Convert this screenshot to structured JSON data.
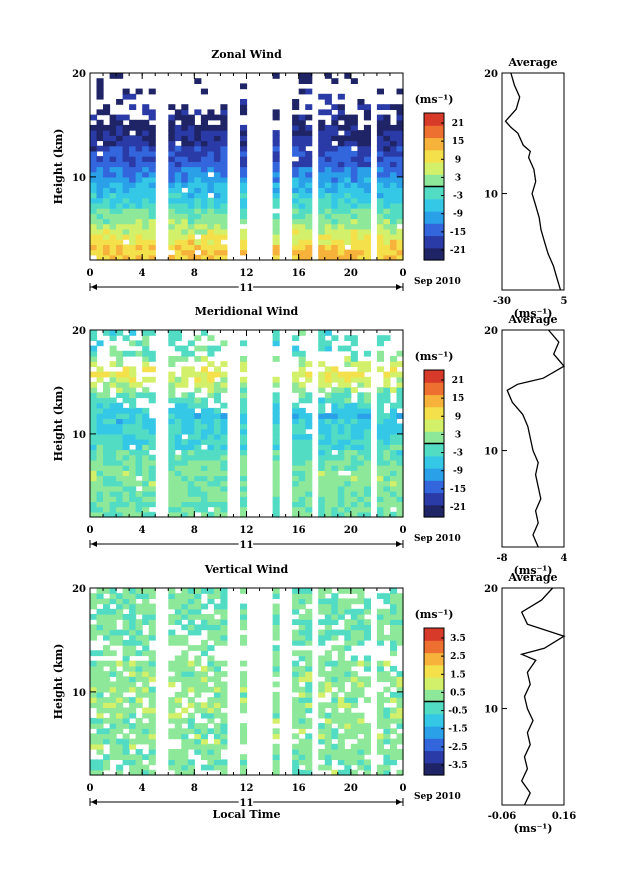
{
  "chart_data": [
    {
      "type": "heatmap",
      "title": "Zonal Wind",
      "ylabel": "Height (km)",
      "xticks": [
        "0",
        "4",
        "8",
        "12",
        "16",
        "20",
        "0"
      ],
      "yticks": [
        "20",
        "10"
      ],
      "ylim": [
        2,
        20
      ],
      "xlim": [
        0,
        24
      ],
      "day_label": "11",
      "date_label": "Sep 2010",
      "colorbar": {
        "unit": "(ms⁻¹)",
        "ticks": [
          "21",
          "15",
          "9",
          "3",
          "-3",
          "-9",
          "-15",
          "-21"
        ],
        "range": [
          -24,
          24
        ]
      },
      "profile": {
        "title": "Average",
        "unit": "(ms⁻¹)",
        "xticks": [
          "-30",
          "5"
        ],
        "xlim": [
          -30,
          5
        ],
        "yticks": [
          "20",
          "10"
        ],
        "heights": [
          2,
          3,
          4,
          5,
          6,
          7,
          8,
          9,
          10,
          11,
          12,
          13,
          13.5,
          14,
          15,
          15.5,
          16,
          17,
          18,
          19,
          20
        ],
        "values": [
          3,
          1,
          -1,
          -4,
          -6,
          -8,
          -9,
          -11,
          -13,
          -11,
          -12,
          -15,
          -14,
          -18,
          -21,
          -25,
          -28,
          -22,
          -20,
          -23,
          -25
        ]
      },
      "wind_samples": [
        {
          "height": 3,
          "value": 12
        },
        {
          "height": 5,
          "value": 5
        },
        {
          "height": 7,
          "value": -2
        },
        {
          "height": 9,
          "value": -8
        },
        {
          "height": 11,
          "value": -14
        },
        {
          "height": 13,
          "value": -18
        },
        {
          "height": 15,
          "value": -22
        },
        {
          "height": 17,
          "value": -20
        },
        {
          "height": 19,
          "value": -23
        }
      ]
    },
    {
      "type": "heatmap",
      "title": "Meridional Wind",
      "ylabel": "Height (km)",
      "xticks": [
        "0",
        "4",
        "8",
        "12",
        "16",
        "20",
        "0"
      ],
      "yticks": [
        "20",
        "10"
      ],
      "ylim": [
        2,
        20
      ],
      "xlim": [
        0,
        24
      ],
      "day_label": "11",
      "date_label": "Sep 2010",
      "colorbar": {
        "unit": "(ms⁻¹)",
        "ticks": [
          "21",
          "15",
          "9",
          "3",
          "-3",
          "-9",
          "-15",
          "-21"
        ],
        "range": [
          -24,
          24
        ]
      },
      "profile": {
        "title": "Average",
        "unit": "(ms⁻¹)",
        "xticks": [
          "-8",
          "4"
        ],
        "xlim": [
          -8,
          4
        ],
        "yticks": [
          "20",
          "10"
        ],
        "heights": [
          2,
          3,
          4,
          5,
          6,
          7,
          8,
          9,
          10,
          11,
          12,
          13,
          14,
          15,
          15.5,
          16,
          17,
          18,
          19,
          20
        ],
        "values": [
          -1,
          -2,
          -1,
          -1.5,
          -0.5,
          -1,
          -1.5,
          -1,
          -2,
          -2.5,
          -3,
          -4,
          -6,
          -7,
          -5,
          0,
          4,
          2,
          3,
          1
        ]
      },
      "wind_samples": [
        {
          "height": 3,
          "value": 0
        },
        {
          "height": 6,
          "value": 2
        },
        {
          "height": 9,
          "value": -3
        },
        {
          "height": 12,
          "value": -6
        },
        {
          "height": 16,
          "value": 9
        },
        {
          "height": 18,
          "value": -2
        }
      ]
    },
    {
      "type": "heatmap",
      "title": "Vertical Wind",
      "ylabel": "Height (km)",
      "xlabel": "Local Time",
      "xticks": [
        "0",
        "4",
        "8",
        "12",
        "16",
        "20",
        "0"
      ],
      "yticks": [
        "20",
        "10"
      ],
      "ylim": [
        2,
        20
      ],
      "xlim": [
        0,
        24
      ],
      "day_label": "11",
      "date_label": "Sep 2010",
      "colorbar": {
        "unit": "(ms⁻¹)",
        "ticks": [
          "3.5",
          "2.5",
          "1.5",
          "0.5",
          "-0.5",
          "-1.5",
          "-2.5",
          "-3.5"
        ],
        "range": [
          -4,
          4
        ]
      },
      "profile": {
        "title": "Average",
        "unit": "(ms⁻¹)",
        "xticks": [
          "-0.06",
          "0.16"
        ],
        "xlim": [
          -0.06,
          0.16
        ],
        "yticks": [
          "20",
          "10"
        ],
        "heights": [
          2,
          3,
          4,
          5,
          6,
          7,
          8,
          9,
          10,
          11,
          12,
          13,
          14,
          14.5,
          15,
          16,
          17,
          18,
          19,
          20
        ],
        "values": [
          0.02,
          0.04,
          0.01,
          0.03,
          0.02,
          0.04,
          0.03,
          0.05,
          0.03,
          0.02,
          0.04,
          0.03,
          0.06,
          0.01,
          0.09,
          0.16,
          0.03,
          0.01,
          0.08,
          0.12
        ]
      },
      "wind_samples": [
        {
          "height": 4,
          "value": 0.2
        },
        {
          "height": 10,
          "value": 0.4
        },
        {
          "height": 16,
          "value": 0.1
        }
      ]
    }
  ]
}
